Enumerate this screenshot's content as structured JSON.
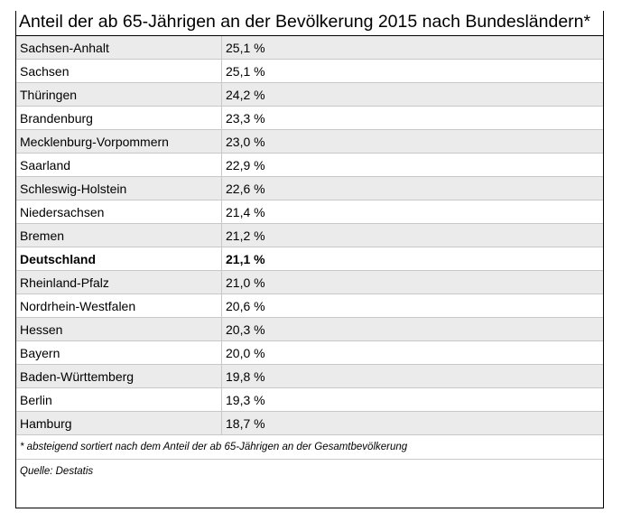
{
  "title": "Anteil der ab 65-Jährigen an der Bevölkerung 2015 nach Bundesländern*",
  "footnote": "* absteigend sortiert nach dem Anteil der ab 65-Jährigen an der Gesamtbevölkerung",
  "source": "Quelle: Destatis",
  "rows": [
    {
      "name": "Sachsen-Anhalt",
      "value": "25,1 %"
    },
    {
      "name": "Sachsen",
      "value": "25,1 %"
    },
    {
      "name": "Thüringen",
      "value": "24,2 %"
    },
    {
      "name": "Brandenburg",
      "value": "23,3 %"
    },
    {
      "name": "Mecklenburg-Vorpommern",
      "value": "23,0 %"
    },
    {
      "name": "Saarland",
      "value": "22,9 %"
    },
    {
      "name": "Schleswig-Holstein",
      "value": "22,6 %"
    },
    {
      "name": "Niedersachsen",
      "value": "21,4 %"
    },
    {
      "name": "Bremen",
      "value": "21,2 %"
    },
    {
      "name": "Deutschland",
      "value": "21,1 %"
    },
    {
      "name": "Rheinland-Pfalz",
      "value": "21,0 %"
    },
    {
      "name": "Nordrhein-Westfalen",
      "value": "20,6 %"
    },
    {
      "name": "Hessen",
      "value": "20,3 %"
    },
    {
      "name": "Bayern",
      "value": "20,0 %"
    },
    {
      "name": "Baden-Württemberg",
      "value": "19,8 %"
    },
    {
      "name": "Berlin",
      "value": "19,3 %"
    },
    {
      "name": "Hamburg",
      "value": "18,7 %"
    }
  ],
  "colors": {
    "shaded_row": "#ebebeb",
    "grid": "#c8c8c8",
    "border": "#000000"
  },
  "chart_data": {
    "type": "table",
    "title": "Anteil der ab 65-Jährigen an der Bevölkerung 2015 nach Bundesländern*",
    "columns": [
      "",
      ""
    ],
    "categories": [
      "Sachsen-Anhalt",
      "Sachsen",
      "Thüringen",
      "Brandenburg",
      "Mecklenburg-Vorpommern",
      "Saarland",
      "Schleswig-Holstein",
      "Niedersachsen",
      "Bremen",
      "Deutschland",
      "Rheinland-Pfalz",
      "Nordrhein-Westfalen",
      "Hessen",
      "Bayern",
      "Baden-Württemberg",
      "Berlin",
      "Hamburg"
    ],
    "values": [
      25.1,
      25.1,
      24.2,
      23.3,
      23.0,
      22.9,
      22.6,
      21.4,
      21.2,
      21.1,
      21.0,
      20.6,
      20.3,
      20.0,
      19.8,
      19.3,
      18.7
    ],
    "unit": "%",
    "highlighted": [
      "Deutschland"
    ]
  }
}
